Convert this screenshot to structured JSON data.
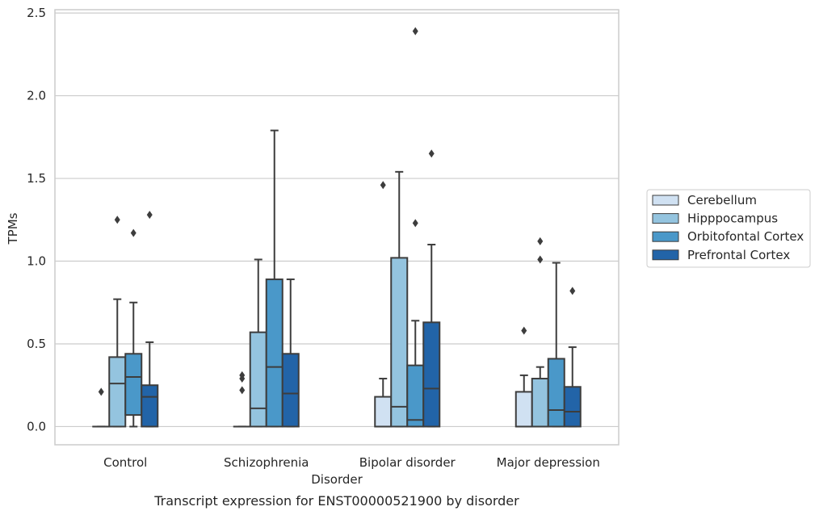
{
  "chart_data": {
    "type": "box",
    "title": "",
    "caption": "Transcript expression for ENST00000521900 by disorder",
    "xlabel": "Disorder",
    "ylabel": "TPMs",
    "ylim": [
      -0.11,
      2.52
    ],
    "yticks": [
      "0.0",
      "0.5",
      "1.0",
      "1.5",
      "2.0",
      "2.5"
    ],
    "ytick_values": [
      0,
      0.5,
      1.0,
      1.5,
      2.0,
      2.5
    ],
    "grid": true,
    "legend_position": "right",
    "categories": [
      "Control",
      "Schizophrenia",
      "Bipolar disorder",
      "Major depression"
    ],
    "series": [
      {
        "name": "Cerebellum",
        "color": "#d0e1f2",
        "boxes": [
          {
            "whisker_low": 0,
            "q1": 0,
            "median": 0,
            "q3": 0,
            "whisker_high": 0,
            "outliers": [
              0.21
            ]
          },
          {
            "whisker_low": 0,
            "q1": 0,
            "median": 0,
            "q3": 0,
            "whisker_high": 0,
            "outliers": [
              0.31,
              0.29,
              0.22
            ]
          },
          {
            "whisker_low": 0,
            "q1": 0,
            "median": 0,
            "q3": 0.18,
            "whisker_high": 0.29,
            "outliers": [
              1.46
            ]
          },
          {
            "whisker_low": 0,
            "q1": 0,
            "median": 0,
            "q3": 0.21,
            "whisker_high": 0.31,
            "outliers": [
              0.58
            ]
          }
        ]
      },
      {
        "name": "Hipppocampus",
        "color": "#94c4df",
        "boxes": [
          {
            "whisker_low": 0,
            "q1": 0,
            "median": 0.26,
            "q3": 0.42,
            "whisker_high": 0.77,
            "outliers": [
              1.25
            ]
          },
          {
            "whisker_low": 0,
            "q1": 0,
            "median": 0.11,
            "q3": 0.57,
            "whisker_high": 1.01,
            "outliers": []
          },
          {
            "whisker_low": 0,
            "q1": 0,
            "median": 0.12,
            "q3": 1.02,
            "whisker_high": 1.54,
            "outliers": []
          },
          {
            "whisker_low": 0,
            "q1": 0,
            "median": 0,
            "q3": 0.29,
            "whisker_high": 0.36,
            "outliers": [
              1.12,
              1.01
            ]
          }
        ]
      },
      {
        "name": "Orbitofontal Cortex",
        "color": "#4a98c9",
        "boxes": [
          {
            "whisker_low": 0,
            "q1": 0.07,
            "median": 0.3,
            "q3": 0.44,
            "whisker_high": 0.75,
            "outliers": [
              1.17
            ]
          },
          {
            "whisker_low": 0,
            "q1": 0,
            "median": 0.36,
            "q3": 0.89,
            "whisker_high": 1.79,
            "outliers": []
          },
          {
            "whisker_low": 0,
            "q1": 0,
            "median": 0.04,
            "q3": 0.37,
            "whisker_high": 0.64,
            "outliers": [
              2.39,
              1.23
            ]
          },
          {
            "whisker_low": 0,
            "q1": 0,
            "median": 0.1,
            "q3": 0.41,
            "whisker_high": 0.99,
            "outliers": []
          }
        ]
      },
      {
        "name": "Prefrontal Cortex",
        "color": "#2264a8",
        "boxes": [
          {
            "whisker_low": 0,
            "q1": 0,
            "median": 0.18,
            "q3": 0.25,
            "whisker_high": 0.51,
            "outliers": [
              1.28
            ]
          },
          {
            "whisker_low": 0,
            "q1": 0,
            "median": 0.2,
            "q3": 0.44,
            "whisker_high": 0.89,
            "outliers": []
          },
          {
            "whisker_low": 0,
            "q1": 0,
            "median": 0.23,
            "q3": 0.63,
            "whisker_high": 1.1,
            "outliers": [
              1.65
            ]
          },
          {
            "whisker_low": 0,
            "q1": 0,
            "median": 0.09,
            "q3": 0.24,
            "whisker_high": 0.48,
            "outliers": [
              0.82
            ]
          }
        ]
      }
    ]
  }
}
